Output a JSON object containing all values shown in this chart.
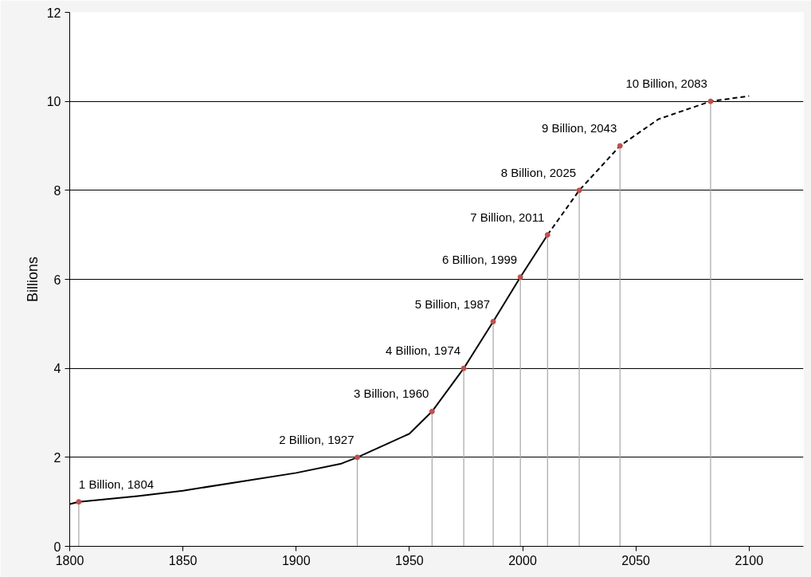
{
  "chart_data": {
    "type": "line",
    "ylabel": "Billions",
    "xlim": [
      1800,
      2124
    ],
    "ylim": [
      0,
      12
    ],
    "xticks": [
      1800,
      1850,
      1900,
      1950,
      2000,
      2050,
      2100
    ],
    "yticks": [
      0,
      2,
      4,
      6,
      8,
      10,
      12
    ],
    "grid": "y",
    "series": [
      {
        "color": "#000000",
        "line_style": "solid",
        "marker": "none",
        "x": [
          1800,
          1804,
          1830,
          1850,
          1900,
          1920,
          1927,
          1940,
          1950,
          1960,
          1974,
          1987,
          1999,
          2011
        ],
        "values": [
          0.95,
          1,
          1.13,
          1.25,
          1.65,
          1.86,
          2,
          2.3,
          2.53,
          3.03,
          4,
          5.05,
          6.05,
          7
        ]
      },
      {
        "color": "#000000",
        "line_style": "dashed",
        "marker": "none",
        "x": [
          2011,
          2025,
          2043,
          2060,
          2083,
          2100
        ],
        "values": [
          7,
          8,
          9,
          9.6,
          10,
          10.12
        ]
      },
      {
        "type": "lollipop",
        "color": "#c0504d",
        "marker": "circle",
        "x": [
          1804,
          1927,
          1960,
          1974,
          1987,
          1999,
          2011,
          2025,
          2043,
          2083
        ],
        "values": [
          1,
          2,
          3.03,
          4,
          5.05,
          6.05,
          7,
          8,
          9,
          10
        ]
      }
    ],
    "annotations": [
      {
        "text": "1 Billion, 1804",
        "x": 1804,
        "y": 1
      },
      {
        "text": "2 Billion, 1927",
        "x": 1927,
        "y": 2
      },
      {
        "text": "3 Billion, 1960",
        "x": 1960,
        "y": 3.03
      },
      {
        "text": "4 Billion, 1974",
        "x": 1974,
        "y": 4
      },
      {
        "text": "5 Billion, 1987",
        "x": 1987,
        "y": 5.05
      },
      {
        "text": "6 Billion, 1999",
        "x": 1999,
        "y": 6.05
      },
      {
        "text": "7 Billion, 2011",
        "x": 2011,
        "y": 7
      },
      {
        "text": "8 Billion, 2025",
        "x": 2025,
        "y": 8
      },
      {
        "text": "9 Billion, 2043",
        "x": 2043,
        "y": 9
      },
      {
        "text": "10 Billion, 2083",
        "x": 2083,
        "y": 10
      }
    ]
  }
}
